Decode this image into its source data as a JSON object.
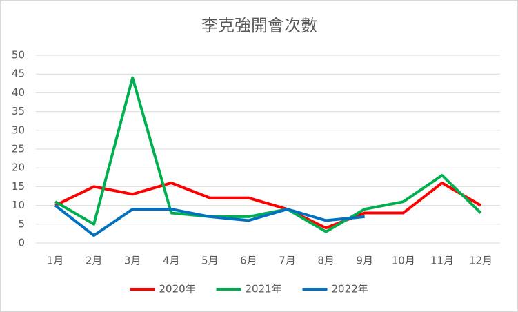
{
  "chart_data": {
    "type": "line",
    "title": "李克強開會次數",
    "categories": [
      "1月",
      "2月",
      "3月",
      "4月",
      "5月",
      "6月",
      "7月",
      "8月",
      "9月",
      "10月",
      "11月",
      "12月"
    ],
    "series": [
      {
        "name": "2020年",
        "color": "#ff0000",
        "values": [
          10,
          15,
          13,
          16,
          12,
          12,
          9,
          4,
          8,
          8,
          16,
          10
        ]
      },
      {
        "name": "2021年",
        "color": "#00b050",
        "values": [
          11,
          5,
          44,
          8,
          7,
          7,
          9,
          3,
          9,
          11,
          18,
          8
        ]
      },
      {
        "name": "2022年",
        "color": "#0070c0",
        "values": [
          10,
          2,
          9,
          9,
          7,
          6,
          9,
          6,
          7,
          null,
          null,
          null
        ]
      }
    ],
    "ylim": [
      0,
      50
    ],
    "yticks": [
      0,
      5,
      10,
      15,
      20,
      25,
      30,
      35,
      40,
      45,
      50
    ],
    "grid": true,
    "legend": "bottom"
  }
}
